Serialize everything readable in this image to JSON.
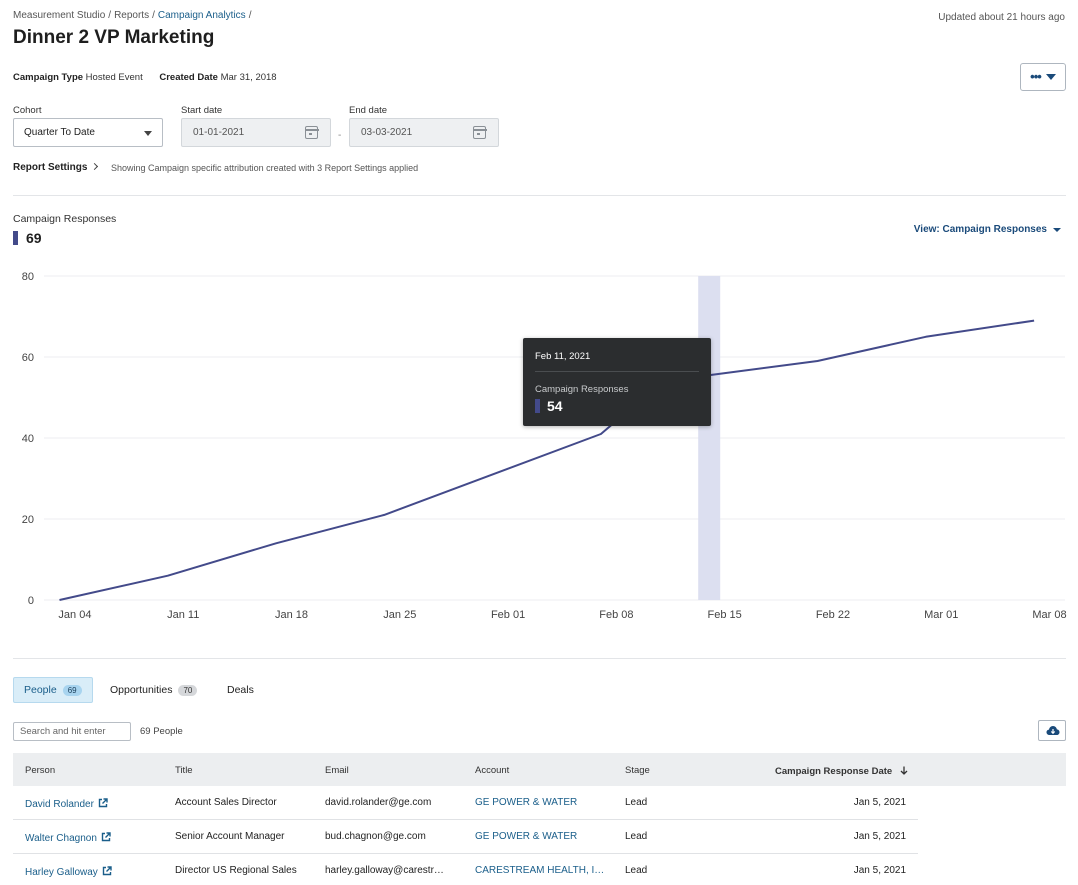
{
  "breadcrumb": {
    "items": [
      "Measurement Studio",
      "Reports",
      "Campaign Analytics"
    ],
    "separator": "/"
  },
  "updated": "Updated about 21 hours ago",
  "title": "Dinner 2 VP Marketing",
  "meta": {
    "campaign_type_label": "Campaign Type",
    "campaign_type_value": "Hosted Event",
    "created_date_label": "Created Date",
    "created_date_value": "Mar 31, 2018"
  },
  "filters": {
    "cohort_label": "Cohort",
    "cohort_value": "Quarter To Date",
    "start_label": "Start date",
    "start_value": "01-01-2021",
    "end_label": "End date",
    "end_value": "03-03-2021",
    "range_separator": "-"
  },
  "report_settings": {
    "label": "Report Settings",
    "note": "Showing Campaign specific attribution created with 3 Report Settings applied"
  },
  "metric": {
    "label": "Campaign Responses",
    "value": "69",
    "color": "#434a8a"
  },
  "view_select": "View: Campaign Responses",
  "chart_data": {
    "type": "line",
    "series": [
      {
        "name": "Campaign Responses",
        "color": "#434a8a",
        "points": [
          {
            "x": "2021-01-03",
            "y": 0
          },
          {
            "x": "2021-01-10",
            "y": 6
          },
          {
            "x": "2021-01-17",
            "y": 14
          },
          {
            "x": "2021-01-24",
            "y": 21
          },
          {
            "x": "2021-01-31",
            "y": 31
          },
          {
            "x": "2021-02-07",
            "y": 41
          },
          {
            "x": "2021-02-11",
            "y": 54
          },
          {
            "x": "2021-02-21",
            "y": 59
          },
          {
            "x": "2021-02-28",
            "y": 65
          },
          {
            "x": "2021-03-07",
            "y": 69
          }
        ]
      }
    ],
    "x_ticks": [
      {
        "x": "2021-01-04",
        "label": "Jan 04"
      },
      {
        "x": "2021-01-11",
        "label": "Jan 11"
      },
      {
        "x": "2021-01-18",
        "label": "Jan 18"
      },
      {
        "x": "2021-01-25",
        "label": "Jan 25"
      },
      {
        "x": "2021-02-01",
        "label": "Feb 01"
      },
      {
        "x": "2021-02-08",
        "label": "Feb 08"
      },
      {
        "x": "2021-02-15",
        "label": "Feb 15"
      },
      {
        "x": "2021-02-22",
        "label": "Feb 22"
      },
      {
        "x": "2021-03-01",
        "label": "Mar 01"
      },
      {
        "x": "2021-03-08",
        "label": "Mar 08"
      }
    ],
    "y_ticks": [
      0,
      20,
      40,
      60,
      80
    ],
    "ylim": [
      0,
      80
    ],
    "xlim": [
      "2021-01-02",
      "2021-03-09"
    ],
    "highlight": {
      "x": "2021-02-14",
      "color": "#dcdff0"
    },
    "tooltip": {
      "date": "Feb 11, 2021",
      "label": "Campaign Responses",
      "value": "54"
    },
    "grid": true
  },
  "tabs": [
    {
      "label": "People",
      "count": "69",
      "active": true
    },
    {
      "label": "Opportunities",
      "count": "70",
      "active": false
    },
    {
      "label": "Deals",
      "count": "",
      "active": false
    }
  ],
  "search": {
    "placeholder": "Search and hit enter",
    "count_text": "69 People"
  },
  "table": {
    "columns": [
      "Person",
      "Title",
      "Email",
      "Account",
      "Stage",
      "Campaign Response Date"
    ],
    "rows": [
      [
        "David Rolander",
        "Account Sales Director",
        "david.rolander@ge.com",
        "GE POWER & WATER",
        "Lead",
        "Jan 5, 2021"
      ],
      [
        "Walter Chagnon",
        "Senior Account Manager",
        "bud.chagnon@ge.com",
        "GE POWER & WATER",
        "Lead",
        "Jan 5, 2021"
      ],
      [
        "Harley Galloway",
        "Director US Regional Sales",
        "harley.galloway@carestr…",
        "CARESTREAM HEALTH, I…",
        "Lead",
        "Jan 5, 2021"
      ]
    ]
  }
}
